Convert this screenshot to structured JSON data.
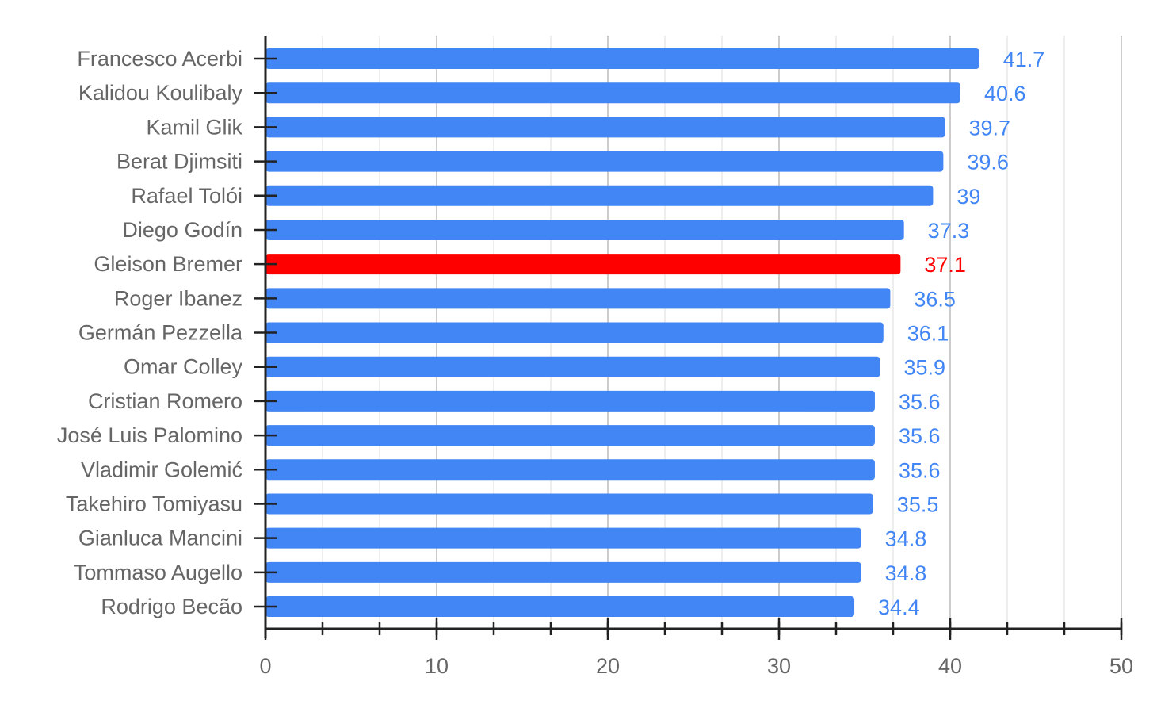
{
  "chart_data": {
    "type": "bar",
    "orientation": "horizontal",
    "title": "",
    "xlabel": "",
    "ylabel": "",
    "xlim": [
      0,
      50
    ],
    "x_ticks": [
      0,
      10,
      20,
      30,
      40,
      50
    ],
    "grid": true,
    "legend": "none",
    "default_color": "#4285f4",
    "highlight_color": "#ff0000",
    "categories": [
      "Francesco Acerbi",
      "Kalidou Koulibaly",
      "Kamil Glik",
      "Berat Djimsiti",
      "Rafael Tolói",
      "Diego Godín",
      "Gleison Bremer",
      "Roger Ibanez",
      "Germán Pezzella",
      "Omar Colley",
      "Cristian Romero",
      "José Luis Palomino",
      "Vladimir Golemić",
      "Takehiro Tomiyasu",
      "Gianluca Mancini",
      "Tommaso Augello",
      "Rodrigo Becão"
    ],
    "values": [
      41.7,
      40.6,
      39.7,
      39.6,
      39,
      37.3,
      37.1,
      36.5,
      36.1,
      35.9,
      35.6,
      35.6,
      35.6,
      35.5,
      34.8,
      34.8,
      34.4
    ],
    "value_labels": [
      "41.7",
      "40.6",
      "39.7",
      "39.6",
      "39",
      "37.3",
      "37.1",
      "36.5",
      "36.1",
      "35.9",
      "35.6",
      "35.6",
      "35.6",
      "35.5",
      "34.8",
      "34.8",
      "34.4"
    ],
    "highlighted": [
      "Gleison Bremer"
    ]
  }
}
